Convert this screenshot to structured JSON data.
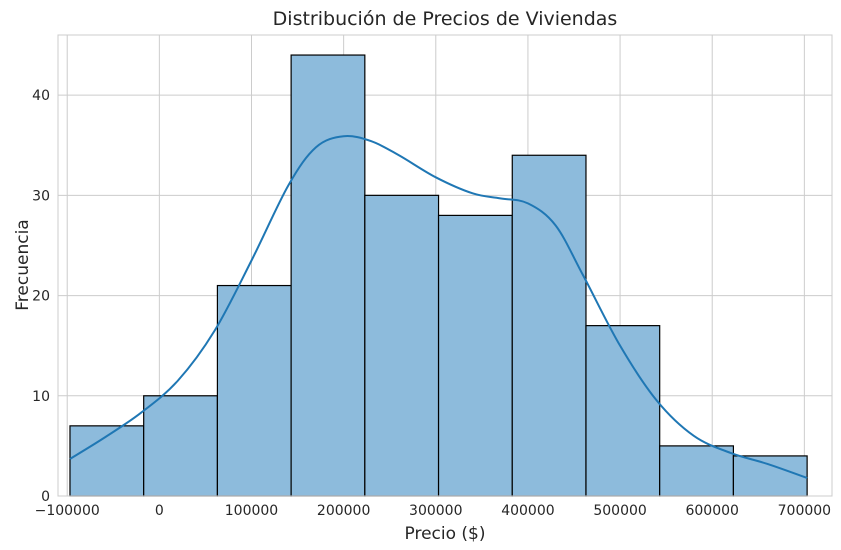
{
  "chart_data": {
    "type": "bar",
    "title": "Distribución de Precios de Viviendas",
    "xlabel": "Precio ($)",
    "ylabel": "Frecuencia",
    "bin_edges": [
      -97000,
      -17000,
      63000,
      143000,
      223000,
      303000,
      383000,
      463000,
      543000,
      623000,
      703000
    ],
    "values": [
      7,
      10,
      21,
      44,
      30,
      28,
      34,
      17,
      5,
      4
    ],
    "xlim": [
      -110000,
      730000
    ],
    "ylim": [
      0,
      46
    ],
    "xticks": [
      -100000,
      0,
      100000,
      200000,
      300000,
      400000,
      500000,
      600000,
      700000
    ],
    "xtick_labels": [
      "−100000",
      "0",
      "100000",
      "200000",
      "300000",
      "400000",
      "500000",
      "600000",
      "700000"
    ],
    "yticks": [
      0,
      10,
      20,
      30,
      40
    ],
    "ytick_labels": [
      "0",
      "10",
      "20",
      "30",
      "40"
    ],
    "grid": true,
    "kde": {
      "x": [
        -97000,
        -60000,
        -20000,
        20000,
        60000,
        100000,
        140000,
        170000,
        200000,
        230000,
        260000,
        300000,
        340000,
        370000,
        400000,
        430000,
        460000,
        500000,
        540000,
        580000,
        620000,
        660000,
        703000
      ],
      "y": [
        3.7,
        5.8,
        8.3,
        11.5,
        16.5,
        23.5,
        31,
        34.8,
        35.9,
        35.4,
        34,
        31.8,
        30.2,
        29.7,
        29.2,
        27,
        22,
        15,
        9.5,
        6,
        4.3,
        3.2,
        1.8
      ]
    },
    "colors": {
      "bar_fill": "#8dbbdc",
      "bar_edge": "#000000",
      "kde_line": "#1f77b4",
      "grid": "#cccccc",
      "spine": "#cccccc"
    }
  }
}
